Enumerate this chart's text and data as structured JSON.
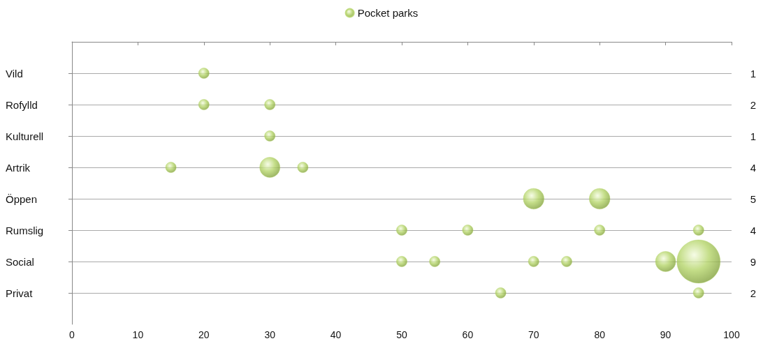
{
  "chart_data": {
    "type": "bubble",
    "orientation": "horizontal",
    "categories": [
      "Vild",
      "Rofylld",
      "Kulturell",
      "Artrik",
      "Öppen",
      "Rumslig",
      "Social",
      "Privat"
    ],
    "y2_categories": [
      "1",
      "2",
      "1",
      "4",
      "5",
      "4",
      "9",
      "2"
    ],
    "series": [
      {
        "name": "Pocket parks",
        "color": "#b5d56a",
        "x": [
          "Vild",
          "Rofylld",
          "Rofylld",
          "Kulturell",
          "Artrik",
          "Artrik",
          "Artrik",
          "Öppen",
          "Öppen",
          "Rumslig",
          "Rumslig",
          "Rumslig",
          "Rumslig",
          "Social",
          "Social",
          "Social",
          "Social",
          "Social",
          "Social",
          "Privat",
          "Privat"
        ],
        "values": [
          20,
          20,
          30,
          30,
          15,
          30,
          35,
          70,
          80,
          50,
          60,
          80,
          95,
          50,
          55,
          70,
          75,
          90,
          95,
          65,
          95
        ],
        "sizes": [
          0.06,
          0.06,
          0.06,
          0.06,
          0.06,
          0.22,
          0.06,
          0.23,
          0.23,
          0.06,
          0.06,
          0.06,
          0.06,
          0.06,
          0.06,
          0.06,
          0.06,
          0.22,
          1,
          0.06,
          0.06
        ]
      }
    ],
    "xlim": [
      0,
      100
    ],
    "xticks": [
      0,
      10,
      20,
      30,
      40,
      50,
      60,
      70,
      80,
      90,
      100
    ],
    "grid": "y",
    "legend": "top",
    "marker": "circle"
  }
}
